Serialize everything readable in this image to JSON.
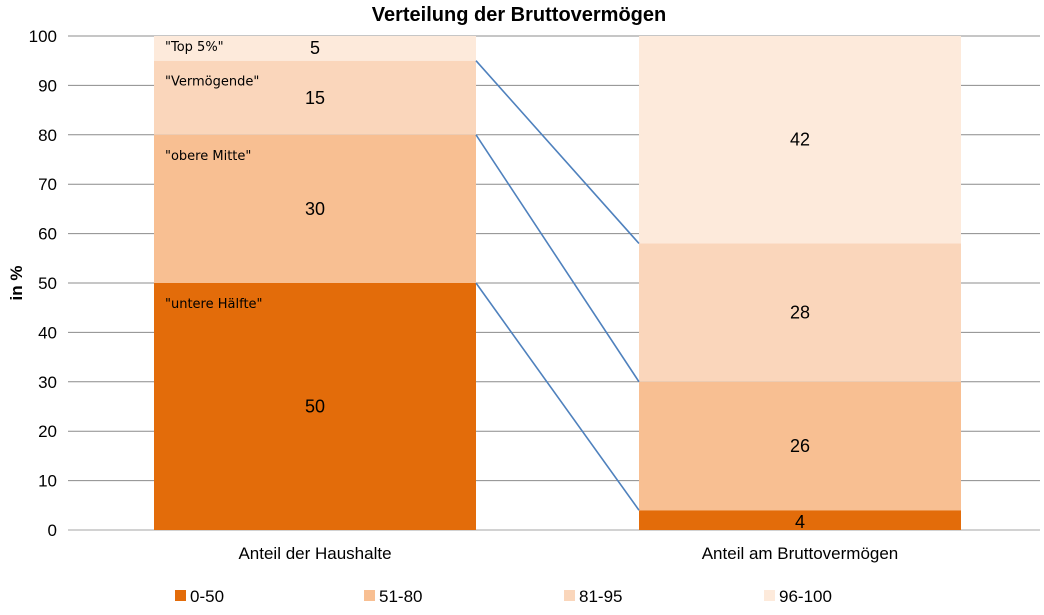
{
  "chart_data": {
    "type": "bar",
    "stacked": true,
    "title": "Verteilung  der Bruttovermögen",
    "xlabel": "",
    "ylabel": "in %",
    "ylim": [
      0,
      100
    ],
    "yticks": [
      "0",
      "10",
      "20",
      "30",
      "40",
      "50",
      "60",
      "70",
      "80",
      "90",
      "100"
    ],
    "categories": [
      "Anteil der Haushalte",
      "Anteil am Bruttovermögen"
    ],
    "grid": true,
    "legend_position": "bottom",
    "series": [
      {
        "name": "0-50",
        "values": [
          50,
          4
        ],
        "color": "#e36c0a"
      },
      {
        "name": "51-80",
        "values": [
          30,
          26
        ],
        "color": "#f8bf92"
      },
      {
        "name": "81-95",
        "values": [
          15,
          28
        ],
        "color": "#fad6bb"
      },
      {
        "name": "96-100",
        "values": [
          5,
          42
        ],
        "color": "#fdeadb"
      }
    ],
    "group_annotations": [
      "\"untere Hälfte\"",
      "\"obere Mitte\"",
      "\"Vermögende\"",
      "\"Top 5%\""
    ],
    "connector_lines": [
      {
        "from": 50,
        "to": 4
      },
      {
        "from": 80,
        "to": 30
      },
      {
        "from": 95,
        "to": 58
      }
    ],
    "connector_color": "#4f81bd"
  }
}
